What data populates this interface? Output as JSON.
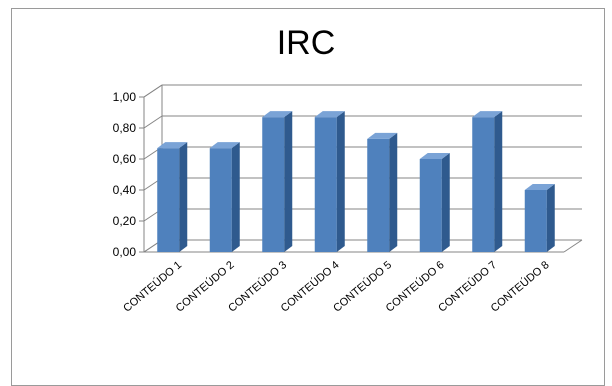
{
  "chart_data": {
    "type": "bar",
    "title": "IRC",
    "xlabel": "",
    "ylabel": "",
    "ylim": [
      0,
      1
    ],
    "yticks": [
      "0,00",
      "0,20",
      "0,40",
      "0,60",
      "0,80",
      "1,00"
    ],
    "categories": [
      "CONTEÚDO 1",
      "CONTEÚDO 2",
      "CONTEÚDO 3",
      "CONTEÚDO 4",
      "CONTEÚDO 5",
      "CONTEÚDO 6",
      "CONTEÚDO 7",
      "CONTEÚDO 8"
    ],
    "values": [
      0.67,
      0.67,
      0.87,
      0.87,
      0.73,
      0.6,
      0.87,
      0.4
    ],
    "grid": true,
    "legend": "none",
    "bar_color": "#4f81bd",
    "bar_side_color": "#2f5a8e",
    "bar_top_color": "#7aa3d6"
  }
}
